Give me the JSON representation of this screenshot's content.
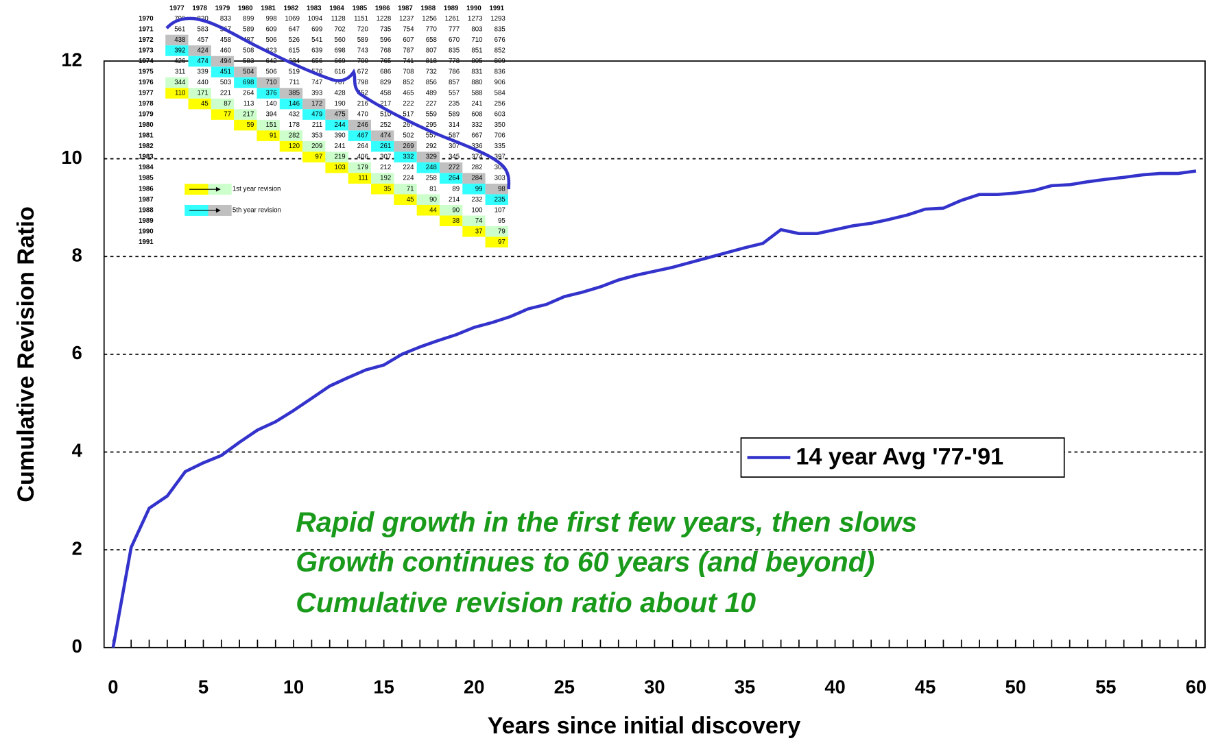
{
  "chart_data": {
    "type": "line",
    "x_label": "Years since initial discovery",
    "y_label": "Cumulative Revision Ratio",
    "xlim": [
      -0.5,
      60.5
    ],
    "ylim": [
      0,
      12
    ],
    "xticks": [
      0,
      5,
      10,
      15,
      20,
      25,
      30,
      35,
      40,
      45,
      50,
      55,
      60
    ],
    "xminorticks": [
      0,
      1,
      2,
      3,
      4,
      5,
      6,
      7,
      8,
      9,
      10,
      11,
      12,
      13,
      14,
      15,
      16,
      17,
      18,
      19,
      20,
      21,
      22,
      23,
      24,
      25,
      26,
      27,
      28,
      29,
      30,
      31,
      32,
      33,
      34,
      35,
      36,
      37,
      38,
      39,
      40,
      41,
      42,
      43,
      44,
      45,
      46,
      47,
      48,
      49,
      50,
      51,
      52,
      53,
      54,
      55,
      56,
      57,
      58,
      59,
      60
    ],
    "yticks": [
      0,
      2,
      4,
      6,
      8,
      10,
      12
    ],
    "grid": true,
    "x": [
      0,
      1,
      2,
      3,
      4,
      5,
      6,
      7,
      8,
      9,
      10,
      11,
      12,
      13,
      14,
      15,
      16,
      17,
      18,
      19,
      20,
      21,
      22,
      23,
      24,
      25,
      26,
      27,
      28,
      29,
      30,
      31,
      32,
      33,
      34,
      35,
      36,
      37,
      38,
      39,
      40,
      41,
      42,
      43,
      44,
      45,
      46,
      47,
      48,
      49,
      50,
      51,
      52,
      53,
      54,
      55,
      56,
      57,
      58,
      59,
      60
    ],
    "series": [
      {
        "name": "14 year Avg '77-'91",
        "color": "#3333cc",
        "values": [
          0,
          2.05,
          2.85,
          3.1,
          3.6,
          3.78,
          3.93,
          4.2,
          4.45,
          4.62,
          4.85,
          5.1,
          5.35,
          5.52,
          5.68,
          5.78,
          6.0,
          6.15,
          6.28,
          6.4,
          6.55,
          6.65,
          6.77,
          6.93,
          7.02,
          7.18,
          7.27,
          7.38,
          7.52,
          7.62,
          7.7,
          7.78,
          7.88,
          7.98,
          8.08,
          8.18,
          8.27,
          8.55,
          8.47,
          8.47,
          8.55,
          8.63,
          8.68,
          8.76,
          8.85,
          8.97,
          8.99,
          9.15,
          9.27,
          9.27,
          9.3,
          9.35,
          9.45,
          9.47,
          9.53,
          9.58,
          9.62,
          9.67,
          9.7,
          9.7,
          9.75
        ]
      }
    ],
    "annotations": [
      "Rapid growth in the first few years, then slows",
      "Growth continues to 60 years (and beyond)",
      "Cumulative revision ratio about 10"
    ]
  },
  "table": {
    "columns": [
      "1977",
      "1978",
      "1979",
      "1980",
      "1981",
      "1982",
      "1983",
      "1984",
      "1985",
      "1986",
      "1987",
      "1988",
      "1989",
      "1990",
      "1991"
    ],
    "rows": [
      {
        "label": "1970",
        "cells": [
          796,
          820,
          833,
          899,
          998,
          1069,
          1094,
          1128,
          1151,
          1228,
          1237,
          1256,
          1261,
          1273,
          1293
        ]
      },
      {
        "label": "1971",
        "cells": [
          561,
          583,
          567,
          589,
          609,
          647,
          699,
          702,
          720,
          735,
          754,
          770,
          777,
          803,
          835
        ]
      },
      {
        "label": "1972",
        "cells": [
          438,
          457,
          458,
          487,
          506,
          526,
          541,
          560,
          589,
          596,
          607,
          658,
          670,
          710,
          676
        ]
      },
      {
        "label": "1973",
        "cells": [
          392,
          424,
          460,
          508,
          623,
          615,
          639,
          698,
          743,
          768,
          787,
          807,
          835,
          851,
          852
        ]
      },
      {
        "label": "1974",
        "cells": [
          426,
          474,
          494,
          583,
          642,
          634,
          656,
          669,
          700,
          765,
          741,
          818,
          778,
          805,
          809
        ]
      },
      {
        "label": "1975",
        "cells": [
          311,
          339,
          451,
          504,
          506,
          519,
          576,
          616,
          672,
          686,
          708,
          732,
          786,
          831,
          836
        ]
      },
      {
        "label": "1976",
        "cells": [
          344,
          440,
          503,
          698,
          710,
          711,
          747,
          767,
          798,
          829,
          852,
          856,
          857,
          880,
          906
        ]
      },
      {
        "label": "1977",
        "cells": [
          110,
          171,
          221,
          264,
          376,
          385,
          393,
          428,
          452,
          458,
          465,
          489,
          557,
          588,
          584
        ]
      },
      {
        "label": "1978",
        "cells": [
          null,
          45,
          87,
          113,
          140,
          146,
          172,
          190,
          216,
          217,
          222,
          227,
          235,
          241,
          256
        ]
      },
      {
        "label": "1979",
        "cells": [
          null,
          null,
          77,
          217,
          394,
          432,
          479,
          475,
          470,
          510,
          517,
          559,
          589,
          608,
          603
        ]
      },
      {
        "label": "1980",
        "cells": [
          null,
          null,
          null,
          59,
          151,
          178,
          211,
          244,
          246,
          252,
          267,
          295,
          314,
          332,
          350
        ]
      },
      {
        "label": "1981",
        "cells": [
          null,
          null,
          null,
          null,
          91,
          282,
          353,
          390,
          467,
          474,
          502,
          557,
          587,
          667,
          706
        ]
      },
      {
        "label": "1982",
        "cells": [
          null,
          null,
          null,
          null,
          null,
          120,
          209,
          241,
          264,
          261,
          269,
          292,
          307,
          336,
          335
        ]
      },
      {
        "label": "1983",
        "cells": [
          null,
          null,
          null,
          null,
          null,
          null,
          97,
          219,
          406,
          307,
          332,
          329,
          345,
          374,
          397
        ]
      },
      {
        "label": "1984",
        "cells": [
          null,
          null,
          null,
          null,
          null,
          null,
          null,
          103,
          179,
          212,
          224,
          248,
          272,
          282,
          301
        ]
      },
      {
        "label": "1985",
        "cells": [
          null,
          null,
          null,
          null,
          null,
          null,
          null,
          null,
          111,
          192,
          224,
          258,
          264,
          284,
          303
        ]
      },
      {
        "label": "1986",
        "cells": [
          null,
          null,
          null,
          null,
          null,
          null,
          null,
          null,
          null,
          35,
          71,
          81,
          89,
          99,
          98
        ]
      },
      {
        "label": "1987",
        "cells": [
          null,
          null,
          null,
          null,
          null,
          null,
          null,
          null,
          null,
          null,
          45,
          90,
          214,
          232,
          235
        ]
      },
      {
        "label": "1988",
        "cells": [
          null,
          null,
          null,
          null,
          null,
          null,
          null,
          null,
          null,
          null,
          null,
          44,
          90,
          100,
          107
        ]
      },
      {
        "label": "1989",
        "cells": [
          null,
          null,
          null,
          null,
          null,
          null,
          null,
          null,
          null,
          null,
          null,
          null,
          38,
          74,
          95
        ]
      },
      {
        "label": "1990",
        "cells": [
          null,
          null,
          null,
          null,
          null,
          null,
          null,
          null,
          null,
          null,
          null,
          null,
          null,
          37,
          79
        ]
      },
      {
        "label": "1991",
        "cells": [
          null,
          null,
          null,
          null,
          null,
          null,
          null,
          null,
          null,
          null,
          null,
          null,
          null,
          null,
          97
        ]
      }
    ],
    "legend": [
      "1st year revision",
      "5th year revision"
    ]
  }
}
